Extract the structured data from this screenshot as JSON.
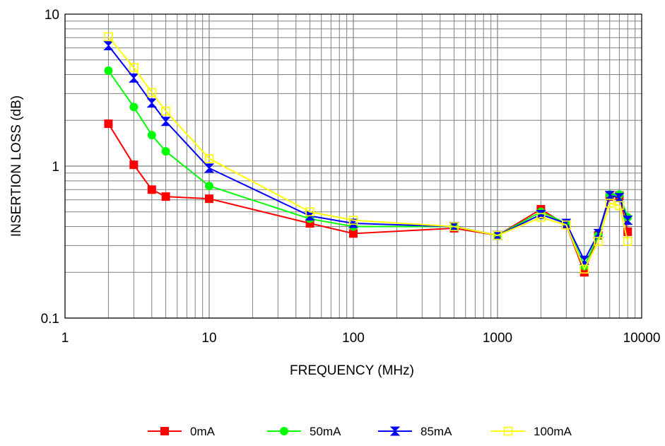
{
  "chart_data": {
    "type": "line",
    "title": "",
    "xlabel": "FREQUENCY (MHz)",
    "ylabel": "INSERTION LOSS (dB)",
    "x_scale": "log",
    "y_scale": "log",
    "xlim": [
      1,
      10000
    ],
    "ylim": [
      0.1,
      10
    ],
    "x_ticks": [
      "1",
      "10",
      "100",
      "1000",
      "10000"
    ],
    "y_ticks": [
      "0.1",
      "1",
      "10"
    ],
    "grid": true,
    "legend_position": "bottom",
    "x": [
      2,
      3,
      4,
      5,
      10,
      50,
      100,
      500,
      1000,
      2000,
      3000,
      4000,
      5000,
      6000,
      7000,
      8000
    ],
    "series": [
      {
        "name": "0mA",
        "color": "#ff0000",
        "marker": "square-filled",
        "values": [
          1.9,
          1.02,
          0.7,
          0.63,
          0.61,
          0.42,
          0.36,
          0.39,
          0.35,
          0.52,
          0.41,
          0.2,
          0.35,
          0.63,
          0.64,
          0.37
        ]
      },
      {
        "name": "50mA",
        "color": "#00ff00",
        "marker": "circle-filled",
        "values": [
          4.25,
          2.45,
          1.6,
          1.25,
          0.74,
          0.45,
          0.4,
          0.4,
          0.35,
          0.5,
          0.42,
          0.22,
          0.35,
          0.65,
          0.65,
          0.46
        ]
      },
      {
        "name": "85mA",
        "color": "#0000ff",
        "marker": "bowtie",
        "values": [
          6.2,
          3.8,
          2.6,
          1.97,
          0.97,
          0.47,
          0.42,
          0.4,
          0.35,
          0.48,
          0.42,
          0.24,
          0.36,
          0.64,
          0.62,
          0.44
        ]
      },
      {
        "name": "100mA",
        "color": "#ffff00",
        "marker": "square-open",
        "values": [
          7.1,
          4.45,
          3.05,
          2.3,
          1.12,
          0.5,
          0.44,
          0.4,
          0.35,
          0.46,
          0.41,
          0.21,
          0.32,
          0.57,
          0.55,
          0.32
        ]
      }
    ]
  }
}
